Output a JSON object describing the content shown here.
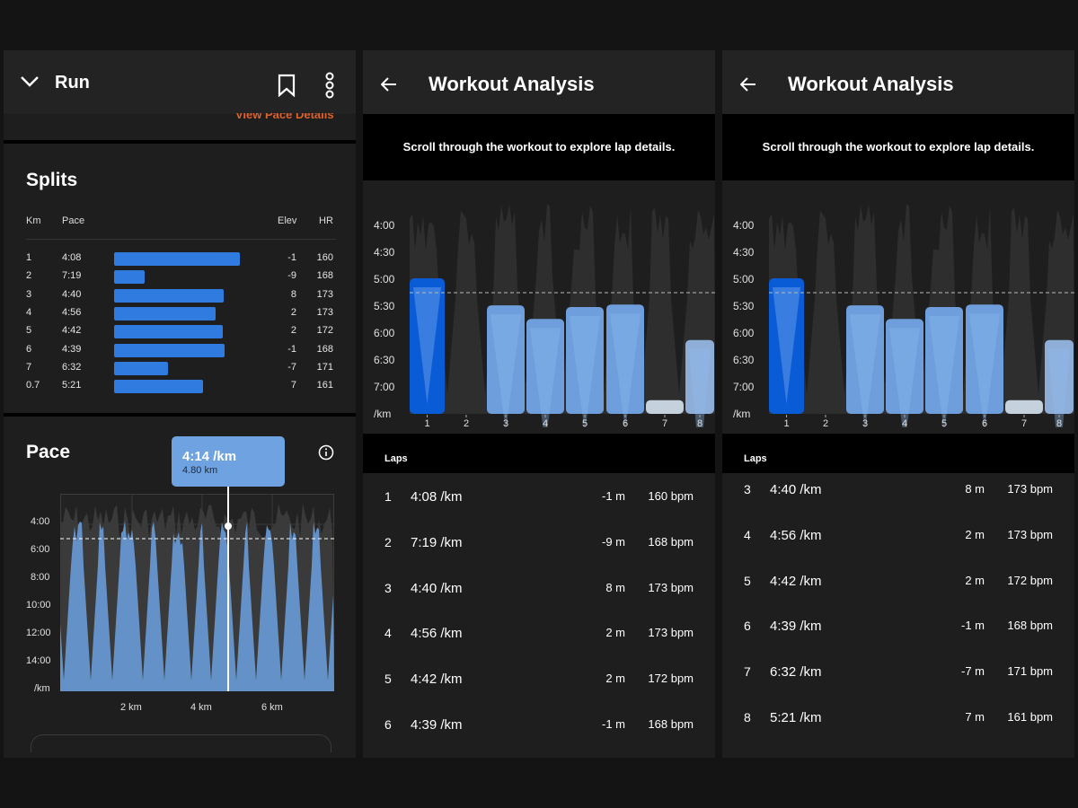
{
  "panel1": {
    "header": {
      "title": "Run",
      "icons": [
        "chevron-down-icon",
        "bookmark-icon",
        "more-vertical-icon"
      ]
    },
    "cutoff_link": "View Pace Details",
    "splits": {
      "title": "Splits",
      "columns": {
        "km": "Km",
        "pace": "Pace",
        "elev": "Elev",
        "hr": "HR"
      },
      "rows": [
        {
          "km": "1",
          "pace": "4:08",
          "pace_sec": 248,
          "elev": "-1",
          "hr": "160"
        },
        {
          "km": "2",
          "pace": "7:19",
          "pace_sec": 439,
          "elev": "-9",
          "hr": "168"
        },
        {
          "km": "3",
          "pace": "4:40",
          "pace_sec": 280,
          "elev": "8",
          "hr": "173"
        },
        {
          "km": "4",
          "pace": "4:56",
          "pace_sec": 296,
          "elev": "2",
          "hr": "173"
        },
        {
          "km": "5",
          "pace": "4:42",
          "pace_sec": 282,
          "elev": "2",
          "hr": "172"
        },
        {
          "km": "6",
          "pace": "4:39",
          "pace_sec": 279,
          "elev": "-1",
          "hr": "168"
        },
        {
          "km": "7",
          "pace": "6:32",
          "pace_sec": 392,
          "elev": "-7",
          "hr": "171"
        },
        {
          "km": "0.7",
          "pace": "5:21",
          "pace_sec": 321,
          "elev": "7",
          "hr": "161"
        }
      ]
    },
    "pace": {
      "title": "Pace",
      "tooltip": {
        "value": "4:14 /km",
        "sub": "4.80 km"
      },
      "info_icon": "info-icon",
      "y_labels": [
        "4:00",
        "6:00",
        "8:00",
        "10:00",
        "12:00",
        "14:00",
        "/km"
      ],
      "x_labels": [
        "2 km",
        "4 km",
        "6 km"
      ]
    }
  },
  "analysis": {
    "title": "Workout Analysis",
    "subtitle": "Scroll through the workout to explore lap details.",
    "y_labels": [
      "4:00",
      "4:30",
      "5:00",
      "5:30",
      "6:00",
      "6:30",
      "7:00",
      "/km"
    ],
    "laps_label": "Laps"
  },
  "chart_data": [
    {
      "type": "bar",
      "title": "Splits",
      "categories": [
        "1",
        "2",
        "3",
        "4",
        "5",
        "6",
        "7",
        "0.7"
      ],
      "values": [
        "4:08",
        "7:19",
        "4:40",
        "4:56",
        "4:42",
        "4:39",
        "6:32",
        "5:21"
      ]
    },
    {
      "type": "area",
      "title": "Pace",
      "x_labels": [
        "2 km",
        "4 km",
        "6 km"
      ],
      "y_labels": [
        "4:00",
        "6:00",
        "8:00",
        "10:00",
        "12:00",
        "14:00"
      ],
      "y_inverted": true,
      "selected_point": {
        "x": "4.80 km",
        "y": "4:14 /km"
      },
      "average_line": true
    },
    {
      "type": "bar",
      "categories": [
        "1",
        "2",
        "3",
        "4",
        "5",
        "6",
        "7",
        "8"
      ],
      "values": [
        "4:08",
        "7:19",
        "4:40",
        "4:56",
        "4:42",
        "4:39",
        "6:32",
        "5:21"
      ],
      "y_labels": [
        "4:00",
        "4:30",
        "5:00",
        "5:30",
        "6:00",
        "6:30",
        "7:00",
        "/km"
      ],
      "y_inverted": true,
      "average_line": true
    }
  ],
  "laps": [
    {
      "num": "1",
      "pace": "4:08 /km",
      "pace_sec": 248,
      "elev": "-1 m",
      "hr": "160 bpm"
    },
    {
      "num": "2",
      "pace": "7:19 /km",
      "pace_sec": 439,
      "elev": "-9 m",
      "hr": "168 bpm"
    },
    {
      "num": "3",
      "pace": "4:40 /km",
      "pace_sec": 280,
      "elev": "8 m",
      "hr": "173 bpm"
    },
    {
      "num": "4",
      "pace": "4:56 /km",
      "pace_sec": 296,
      "elev": "2 m",
      "hr": "173 bpm"
    },
    {
      "num": "5",
      "pace": "4:42 /km",
      "pace_sec": 282,
      "elev": "2 m",
      "hr": "172 bpm"
    },
    {
      "num": "6",
      "pace": "4:39 /km",
      "pace_sec": 279,
      "elev": "-1 m",
      "hr": "168 bpm"
    },
    {
      "num": "7",
      "pace": "6:32 /km",
      "pace_sec": 392,
      "elev": "-7 m",
      "hr": "171 bpm"
    },
    {
      "num": "8",
      "pace": "5:21 /km",
      "pace_sec": 321,
      "elev": "7 m",
      "hr": "161 bpm"
    }
  ],
  "colors": {
    "accent": "#2f7be0",
    "selected_bar": "#0a5bd6",
    "light_bar": "#6ea0dc",
    "pale_bar": "#c6d1de",
    "orange": "#e0602a"
  }
}
